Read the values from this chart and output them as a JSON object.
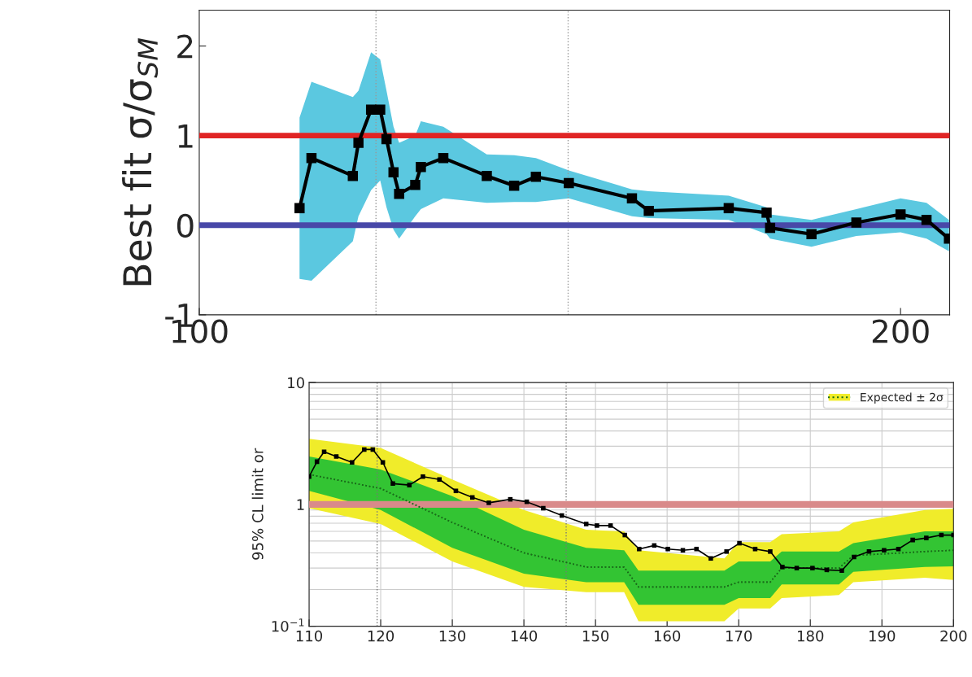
{
  "chart_data": [
    {
      "type": "line",
      "ylabel": "Best fit σ/σ$_{SM}$",
      "xlim": [
        100,
        207
      ],
      "ylim": [
        -1,
        2.4
      ],
      "xticks": [
        100,
        200
      ],
      "yticks": [
        -1,
        0,
        1,
        2
      ],
      "grid": false,
      "marker": "square",
      "x": [
        114.3,
        116.0,
        121.9,
        122.7,
        124.5,
        125.8,
        126.7,
        127.7,
        128.5,
        130.8,
        131.6,
        134.8,
        141.0,
        144.9,
        148.0,
        152.7,
        161.7,
        164.1,
        175.5,
        180.9,
        181.4,
        187.3,
        193.7,
        200.0,
        203.7,
        206.9
      ],
      "series": [
        {
          "color": "#000000",
          "values": [
            0.19,
            0.75,
            0.55,
            0.92,
            1.29,
            1.29,
            0.96,
            0.59,
            0.35,
            0.45,
            0.65,
            0.75,
            0.55,
            0.44,
            0.54,
            0.47,
            0.3,
            0.16,
            0.19,
            0.14,
            -0.03,
            -0.1,
            0.03,
            0.12,
            0.06,
            -0.15
          ],
          "lower": [
            -0.6,
            -0.62,
            -0.18,
            0.1,
            0.39,
            0.5,
            0.2,
            -0.05,
            -0.15,
            0.1,
            0.18,
            0.3,
            0.25,
            0.26,
            0.26,
            0.3,
            0.1,
            0.08,
            0.06,
            -0.1,
            -0.15,
            -0.24,
            -0.12,
            -0.08,
            -0.15,
            -0.29
          ],
          "upper": [
            1.2,
            1.6,
            1.43,
            1.5,
            1.93,
            1.85,
            1.5,
            1.1,
            0.92,
            1.0,
            1.16,
            1.1,
            0.79,
            0.78,
            0.75,
            0.61,
            0.4,
            0.38,
            0.33,
            0.2,
            0.12,
            0.06,
            0.18,
            0.3,
            0.25,
            0.06
          ]
        }
      ],
      "ref_lines": [
        {
          "axis": "y",
          "value": 1,
          "color": "#e02424",
          "line_style": "solid"
        },
        {
          "axis": "y",
          "value": 0,
          "color": "#4848a8",
          "line_style": "solid"
        },
        {
          "axis": "x",
          "value": 125.2,
          "color": "#999999",
          "line_style": "dotted"
        },
        {
          "axis": "x",
          "value": 152.6,
          "color": "#999999",
          "line_style": "dotted"
        }
      ]
    },
    {
      "type": "line",
      "ylabel": "95% CL limit or",
      "log": true,
      "xlim": [
        110,
        200
      ],
      "ylim": [
        0.1,
        10
      ],
      "xticks": [
        110,
        120,
        130,
        140,
        150,
        160,
        170,
        180,
        190,
        200
      ],
      "yticks": [
        {
          "value": 0.1,
          "label": "10$^{−1}$"
        },
        1,
        10
      ],
      "grid": true,
      "legend": "top right",
      "x": [
        110,
        120,
        130,
        140,
        148.7,
        154,
        156,
        168,
        170,
        174.4,
        176,
        184,
        186,
        196,
        200
      ],
      "series": [
        {
          "name": "Expected ± 2σ",
          "color": "#1a6b1a",
          "line_style": "dotted",
          "marker": "none",
          "values": [
            1.76,
            1.35,
            0.71,
            0.4,
            0.306,
            0.306,
            0.21,
            0.21,
            0.23,
            0.23,
            0.3,
            0.3,
            0.38,
            0.41,
            0.42
          ],
          "lower": [
            0.93,
            0.69,
            0.34,
            0.21,
            0.19,
            0.19,
            0.11,
            0.11,
            0.14,
            0.14,
            0.17,
            0.18,
            0.23,
            0.25,
            0.24
          ],
          "upper": [
            3.45,
            2.9,
            1.6,
            0.9,
            0.62,
            0.6,
            0.42,
            0.36,
            0.49,
            0.49,
            0.57,
            0.6,
            0.71,
            0.9,
            0.92
          ]
        },
        {
          "color": "#1a6b1a",
          "line_style": "dotted",
          "marker": "none",
          "values": [
            1.76,
            1.35,
            0.71,
            0.4,
            0.306,
            0.306,
            0.21,
            0.21,
            0.23,
            0.23,
            0.3,
            0.3,
            0.38,
            0.41,
            0.42
          ],
          "lower": [
            1.29,
            0.9,
            0.44,
            0.27,
            0.23,
            0.23,
            0.15,
            0.15,
            0.17,
            0.17,
            0.22,
            0.22,
            0.28,
            0.306,
            0.31
          ],
          "upper": [
            2.47,
            1.93,
            1.17,
            0.62,
            0.44,
            0.42,
            0.286,
            0.286,
            0.34,
            0.34,
            0.41,
            0.41,
            0.48,
            0.6,
            0.6
          ]
        },
        {
          "color": "#000000",
          "marker": "square",
          "x": [
            110,
            111.1,
            112.1,
            113.8,
            116.0,
            117.7,
            118.9,
            120.3,
            121.7,
            124.0,
            125.9,
            128.2,
            130.5,
            132.8,
            135.1,
            138.1,
            140.4,
            142.7,
            145.3,
            148.7,
            150.2,
            152.1,
            154.1,
            156.1,
            158.2,
            160.1,
            162.2,
            164.1,
            166.1,
            168.3,
            170.1,
            172.3,
            174.4,
            176.1,
            178.1,
            180.3,
            182.3,
            184.4,
            186.1,
            188.2,
            190.3,
            192.3,
            194.3,
            196.2,
            198.3,
            200
          ],
          "values": [
            1.69,
            2.24,
            2.7,
            2.47,
            2.21,
            2.82,
            2.82,
            2.21,
            1.48,
            1.44,
            1.69,
            1.6,
            1.29,
            1.14,
            1.03,
            1.1,
            1.05,
            0.93,
            0.81,
            0.69,
            0.67,
            0.67,
            0.56,
            0.43,
            0.46,
            0.43,
            0.42,
            0.43,
            0.36,
            0.41,
            0.48,
            0.43,
            0.41,
            0.306,
            0.3,
            0.3,
            0.29,
            0.286,
            0.37,
            0.41,
            0.42,
            0.43,
            0.51,
            0.53,
            0.56,
            0.56
          ]
        }
      ],
      "ref_lines": [
        {
          "axis": "y",
          "value": 1,
          "color": "#d98a8a",
          "line_style": "solid"
        },
        {
          "axis": "x",
          "value": 119.5,
          "color": "#777777",
          "line_style": "dotted"
        },
        {
          "axis": "x",
          "value": 145.9,
          "color": "#777777",
          "line_style": "dotted"
        }
      ]
    }
  ]
}
